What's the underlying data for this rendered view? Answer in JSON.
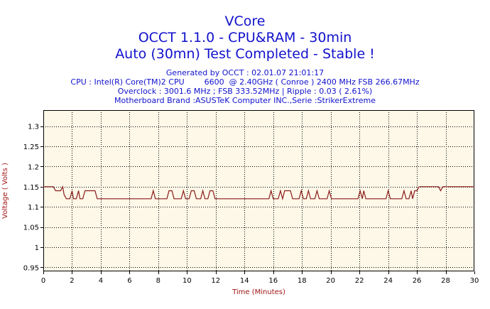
{
  "title_lines": {
    "line1": "VCore",
    "line2": "OCCT 1.1.0 - CPU&RAM - 30min",
    "line3": "Auto (30mn) Test Completed - Stable !"
  },
  "info_lines": {
    "generated": "Generated by OCCT : 02.01.07 21:01:17",
    "cpu": "CPU : Intel(R) Core(TM)2 CPU        6600  @ 2.40GHz ( Conroe ) 2400 MHz FSB 266.67MHz",
    "overclock": "Overclock : 3001.6 MHz ; FSB 333.52MHz | Ripple : 0.03 ( 2.61%)",
    "motherboard": "Motherboard Brand :ASUSTeK Computer INC.,Serie :StrikerExtreme"
  },
  "colors": {
    "plot_background": "#fdf8e8",
    "line": "#8b1a1a",
    "grid": "#000000",
    "title": "#1111cc",
    "axis_title": "#a01515"
  },
  "chart_data": {
    "type": "line",
    "xlabel": "Time (Minutes)",
    "ylabel": "Voltage ( Volts )",
    "xlim": [
      0,
      30
    ],
    "ylim": [
      0.94,
      1.34
    ],
    "x_ticks": [
      0,
      2,
      4,
      6,
      8,
      10,
      12,
      14,
      16,
      18,
      20,
      22,
      24,
      26,
      28,
      30
    ],
    "y_ticks": [
      0.95,
      1,
      1.05,
      1.1,
      1.15,
      1.2,
      1.25,
      1.3
    ],
    "grid": true,
    "series": [
      {
        "values": [
          [
            0,
            1.15
          ],
          [
            0.7,
            1.15
          ],
          [
            0.85,
            1.14
          ],
          [
            1.2,
            1.14
          ],
          [
            1.35,
            1.15
          ],
          [
            1.45,
            1.13
          ],
          [
            1.6,
            1.12
          ],
          [
            1.85,
            1.12
          ],
          [
            2.0,
            1.14
          ],
          [
            2.1,
            1.12
          ],
          [
            2.3,
            1.12
          ],
          [
            2.45,
            1.14
          ],
          [
            2.55,
            1.12
          ],
          [
            2.75,
            1.12
          ],
          [
            2.9,
            1.14
          ],
          [
            3.6,
            1.14
          ],
          [
            3.75,
            1.12
          ],
          [
            7.5,
            1.12
          ],
          [
            7.65,
            1.14
          ],
          [
            7.8,
            1.12
          ],
          [
            8.6,
            1.12
          ],
          [
            8.75,
            1.14
          ],
          [
            8.95,
            1.14
          ],
          [
            9.1,
            1.12
          ],
          [
            9.6,
            1.12
          ],
          [
            9.75,
            1.14
          ],
          [
            9.9,
            1.12
          ],
          [
            10.15,
            1.12
          ],
          [
            10.3,
            1.14
          ],
          [
            10.5,
            1.14
          ],
          [
            10.65,
            1.12
          ],
          [
            10.95,
            1.12
          ],
          [
            11.1,
            1.14
          ],
          [
            11.25,
            1.12
          ],
          [
            11.45,
            1.12
          ],
          [
            11.6,
            1.14
          ],
          [
            11.8,
            1.14
          ],
          [
            11.95,
            1.12
          ],
          [
            15.7,
            1.12
          ],
          [
            15.85,
            1.14
          ],
          [
            16.0,
            1.12
          ],
          [
            16.35,
            1.12
          ],
          [
            16.5,
            1.14
          ],
          [
            16.65,
            1.12
          ],
          [
            16.8,
            1.14
          ],
          [
            17.2,
            1.14
          ],
          [
            17.35,
            1.12
          ],
          [
            17.8,
            1.12
          ],
          [
            17.95,
            1.14
          ],
          [
            18.1,
            1.12
          ],
          [
            18.3,
            1.12
          ],
          [
            18.45,
            1.14
          ],
          [
            18.6,
            1.12
          ],
          [
            18.9,
            1.12
          ],
          [
            19.05,
            1.14
          ],
          [
            19.2,
            1.12
          ],
          [
            19.75,
            1.12
          ],
          [
            19.9,
            1.14
          ],
          [
            20.05,
            1.12
          ],
          [
            21.9,
            1.12
          ],
          [
            22.05,
            1.14
          ],
          [
            22.2,
            1.12
          ],
          [
            22.3,
            1.14
          ],
          [
            22.45,
            1.12
          ],
          [
            23.85,
            1.12
          ],
          [
            24.0,
            1.14
          ],
          [
            24.15,
            1.12
          ],
          [
            24.95,
            1.12
          ],
          [
            25.1,
            1.14
          ],
          [
            25.25,
            1.12
          ],
          [
            25.45,
            1.12
          ],
          [
            25.6,
            1.14
          ],
          [
            25.7,
            1.12
          ],
          [
            25.85,
            1.14
          ],
          [
            26.0,
            1.14
          ],
          [
            26.15,
            1.15
          ],
          [
            27.5,
            1.15
          ],
          [
            27.65,
            1.14
          ],
          [
            27.8,
            1.15
          ],
          [
            30,
            1.15
          ]
        ]
      }
    ]
  }
}
